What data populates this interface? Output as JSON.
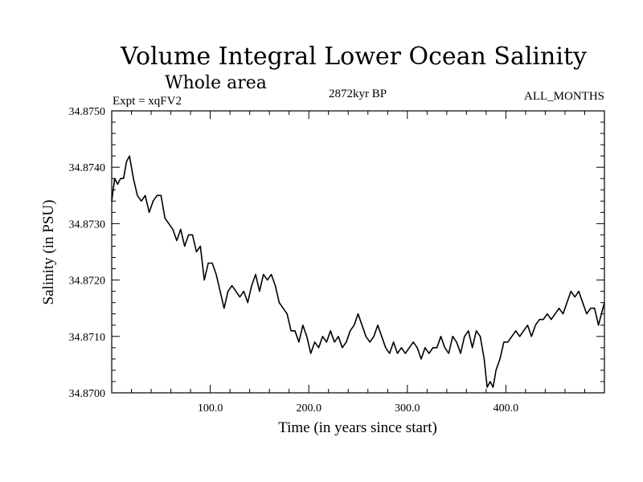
{
  "chart_data": {
    "type": "line",
    "title": "Volume Integral Lower Ocean Salinity",
    "subtitle": "Whole area",
    "experiment": "Expt = xqFV2",
    "period": "2872kyr BP",
    "months": "ALL_MONTHS",
    "xlabel": "Time (in years since start)",
    "ylabel": "Salinity (in PSU)",
    "xlim": [
      0,
      500
    ],
    "ylim": [
      34.87,
      34.875
    ],
    "xticks": [
      100,
      200,
      300,
      400
    ],
    "xtick_labels": [
      "100.0",
      "200.0",
      "300.0",
      "400.0"
    ],
    "yticks": [
      34.87,
      34.871,
      34.872,
      34.873,
      34.874,
      34.875
    ],
    "ytick_labels": [
      "34.8700",
      "34.8710",
      "34.8720",
      "34.8730",
      "34.8740",
      "34.8750"
    ],
    "line_color": "#000000",
    "series": [
      {
        "name": "Salinity",
        "x": [
          0,
          3,
          6,
          9,
          12,
          15,
          18,
          22,
          26,
          30,
          34,
          38,
          42,
          46,
          50,
          54,
          58,
          62,
          66,
          70,
          74,
          78,
          82,
          86,
          90,
          94,
          98,
          102,
          106,
          110,
          114,
          118,
          122,
          126,
          130,
          134,
          138,
          142,
          146,
          150,
          154,
          158,
          162,
          166,
          170,
          174,
          178,
          182,
          186,
          190,
          194,
          198,
          202,
          206,
          210,
          214,
          218,
          222,
          226,
          230,
          234,
          238,
          242,
          246,
          250,
          254,
          258,
          262,
          266,
          270,
          274,
          278,
          282,
          286,
          290,
          294,
          298,
          302,
          306,
          310,
          314,
          318,
          322,
          326,
          330,
          334,
          338,
          342,
          346,
          350,
          354,
          358,
          362,
          366,
          370,
          374,
          378,
          381,
          384,
          387,
          390,
          394,
          398,
          402,
          406,
          410,
          414,
          418,
          422,
          426,
          430,
          434,
          438,
          442,
          446,
          450,
          454,
          458,
          462,
          466,
          470,
          474,
          478,
          482,
          486,
          490,
          494,
          497,
          500
        ],
        "y": [
          34.8734,
          34.8738,
          34.8737,
          34.8738,
          34.8738,
          34.8741,
          34.8742,
          34.8738,
          34.8735,
          34.8734,
          34.8735,
          34.8732,
          34.8734,
          34.8735,
          34.8735,
          34.8731,
          34.873,
          34.8729,
          34.8727,
          34.8729,
          34.8726,
          34.8728,
          34.8728,
          34.8725,
          34.8726,
          34.872,
          34.8723,
          34.8723,
          34.8721,
          34.8718,
          34.8715,
          34.8718,
          34.8719,
          34.8718,
          34.8717,
          34.8718,
          34.8716,
          34.8719,
          34.8721,
          34.8718,
          34.8721,
          34.872,
          34.8721,
          34.8719,
          34.8716,
          34.8715,
          34.8714,
          34.8711,
          34.8711,
          34.8709,
          34.8712,
          34.871,
          34.8707,
          34.8709,
          34.8708,
          34.871,
          34.8709,
          34.8711,
          34.8709,
          34.871,
          34.8708,
          34.8709,
          34.8711,
          34.8712,
          34.8714,
          34.8712,
          34.871,
          34.8709,
          34.871,
          34.8712,
          34.871,
          34.8708,
          34.8707,
          34.8709,
          34.8707,
          34.8708,
          34.8707,
          34.8708,
          34.8709,
          34.8708,
          34.8706,
          34.8708,
          34.8707,
          34.8708,
          34.8708,
          34.871,
          34.8708,
          34.8707,
          34.871,
          34.8709,
          34.8707,
          34.871,
          34.8711,
          34.8708,
          34.8711,
          34.871,
          34.8706,
          34.8701,
          34.8702,
          34.8701,
          34.8704,
          34.8706,
          34.8709,
          34.8709,
          34.871,
          34.8711,
          34.871,
          34.8711,
          34.8712,
          34.871,
          34.8712,
          34.8713,
          34.8713,
          34.8714,
          34.8713,
          34.8714,
          34.8715,
          34.8714,
          34.8716,
          34.8718,
          34.8717,
          34.8718,
          34.8716,
          34.8714,
          34.8715,
          34.8715,
          34.8712,
          34.8714,
          34.8716
        ]
      }
    ]
  }
}
